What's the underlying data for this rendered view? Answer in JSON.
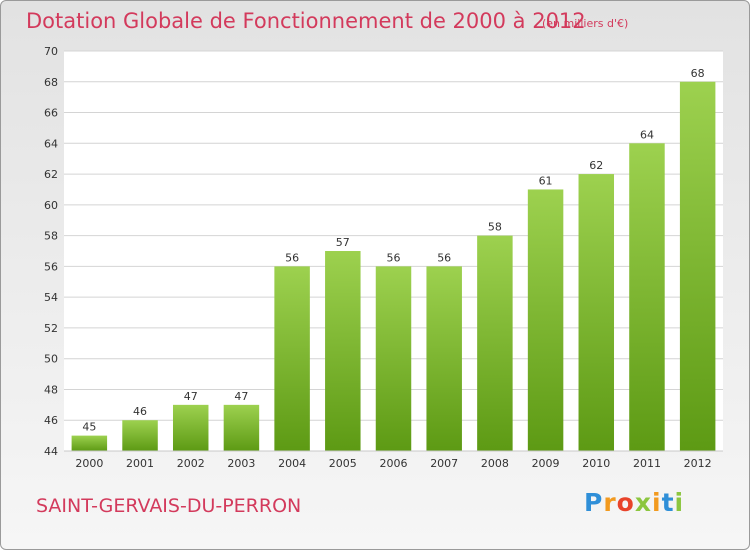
{
  "header": {
    "title": "Dotation Globale de Fonctionnement de 2000 à 2012",
    "unit": "(en milliers d'€)"
  },
  "footer": {
    "commune": "SAINT-GERVAIS-DU-PERRON",
    "logo_letters": [
      {
        "ch": "P",
        "color": "#2f8fd8"
      },
      {
        "ch": "r",
        "color": "#f29a1f"
      },
      {
        "ch": "o",
        "color": "#e8432a"
      },
      {
        "ch": "x",
        "color": "#8cc63f"
      },
      {
        "ch": "i",
        "color": "#f29a1f"
      },
      {
        "ch": "t",
        "color": "#2f8fd8"
      },
      {
        "ch": "i",
        "color": "#8cc63f"
      }
    ]
  },
  "chart_data": {
    "type": "bar",
    "title": "Dotation Globale de Fonctionnement de 2000 à 2012",
    "subtitle": "(en milliers d'€)",
    "categories": [
      "2000",
      "2001",
      "2002",
      "2003",
      "2004",
      "2005",
      "2006",
      "2007",
      "2008",
      "2009",
      "2010",
      "2011",
      "2012"
    ],
    "values": [
      45,
      46,
      47,
      47,
      56,
      57,
      56,
      56,
      58,
      61,
      62,
      64,
      68
    ],
    "ylim": [
      44,
      70
    ],
    "yticks": [
      44,
      46,
      48,
      50,
      52,
      54,
      56,
      58,
      60,
      62,
      64,
      66,
      68,
      70
    ],
    "grid": true,
    "bar_color_top": "#9dd14f",
    "bar_color_bottom": "#5d9a14"
  }
}
